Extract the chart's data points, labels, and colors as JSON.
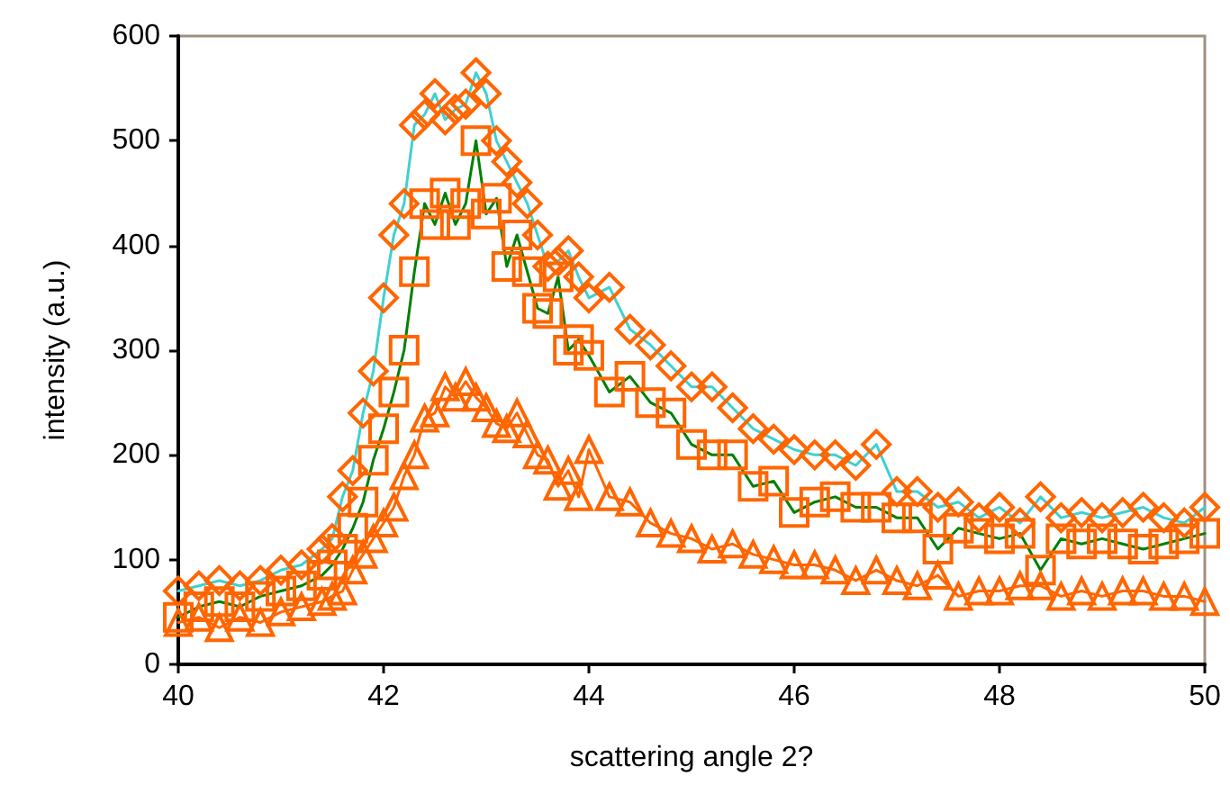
{
  "chart_data": {
    "type": "line",
    "xlabel": "scattering angle 2?",
    "ylabel": "intensity (a.u.)",
    "x": [
      40,
      40.2,
      40.4,
      40.6,
      40.8,
      41,
      41.2,
      41.4,
      41.5,
      41.6,
      41.7,
      41.8,
      41.9,
      42,
      42.1,
      42.2,
      42.3,
      42.4,
      42.5,
      42.6,
      42.7,
      42.8,
      42.9,
      43,
      43.1,
      43.2,
      43.3,
      43.4,
      43.5,
      43.6,
      43.7,
      43.8,
      43.9,
      44,
      44.2,
      44.4,
      44.6,
      44.8,
      45,
      45.2,
      45.4,
      45.6,
      45.8,
      46,
      46.2,
      46.4,
      46.6,
      46.8,
      47,
      47.2,
      47.4,
      47.6,
      47.8,
      48,
      48.2,
      48.4,
      48.6,
      48.8,
      49,
      49.2,
      49.4,
      49.6,
      49.8,
      50
    ],
    "xlim": [
      40,
      50
    ],
    "xticks": [
      40,
      42,
      44,
      46,
      48,
      50
    ],
    "ylim": [
      0,
      600
    ],
    "yticks": [
      0,
      100,
      200,
      300,
      400,
      500,
      600
    ],
    "grid": false,
    "line_style": "solid",
    "series": [
      {
        "color": "#40d0d0",
        "marker": "diamond",
        "colors": [
          "#ff6600",
          "#ff6600",
          "#ff6600",
          "#ff6600",
          "#ff6600",
          "#ff6600",
          "#ff6600",
          "#ff6600",
          "#ff6600",
          "#ff6600",
          "#ff6600",
          "#ff6600",
          "#ff6600",
          "#ff6600",
          "#ff6600",
          "#ff6600",
          "#ff6600",
          "#ff6600",
          "#ff6600",
          "#ff6600",
          "#ff6600",
          "#ff6600",
          "#ff6600",
          "#ff6600",
          "#ff6600",
          "#ff6600",
          "#ff6600",
          "#ff6600",
          "#ff6600",
          "#ff6600",
          "#ff6600",
          "#ff6600",
          "#ff6600",
          "#ff6600",
          "#ff6600",
          "#ff6600",
          "#ff6600",
          "#ff6600",
          "#ff6600",
          "#ff6600",
          "#ff6600",
          "#ff6600",
          "#ff6600",
          "#ff6600",
          "#ff6600",
          "#ff6600",
          "#ff6600",
          "#ff6600",
          "#ff6600",
          "#ff6600",
          "#ff6600",
          "#ff6600",
          "#ff6600",
          "#ff6600",
          "#ff6600",
          "#ff6600",
          "#ff6600",
          "#ff6600",
          "#ff6600",
          "#ff6600",
          "#ff6600",
          "#ff6600",
          "#ff6600",
          "#ff6600"
        ],
        "values": [
          70,
          75,
          80,
          75,
          80,
          90,
          95,
          110,
          120,
          160,
          185,
          240,
          280,
          350,
          410,
          440,
          515,
          525,
          545,
          520,
          530,
          535,
          565,
          545,
          500,
          480,
          460,
          440,
          410,
          380,
          385,
          395,
          370,
          350,
          360,
          320,
          305,
          285,
          265,
          265,
          245,
          225,
          215,
          205,
          200,
          200,
          190,
          210,
          165,
          165,
          150,
          155,
          140,
          150,
          135,
          160,
          140,
          145,
          140,
          145,
          150,
          140,
          135,
          150
        ]
      },
      {
        "color": "#008000",
        "marker": "square",
        "colors": [
          "#ff6600",
          "#ff6600",
          "#ff6600",
          "#ff6600",
          "#ff6600",
          "#ff6600",
          "#ff6600",
          "#ff6600",
          "#ff6600",
          "#ff6600",
          "#ff6600",
          "#ff6600",
          "#ff6600",
          "#ff6600",
          "#ff6600",
          "#ff6600",
          "#ff6600",
          "#ff6600",
          "#ff6600",
          "#ff6600",
          "#ff6600",
          "#ff6600",
          "#ff6600",
          "#ff6600",
          "#ff6600",
          "#ff6600",
          "#ff6600",
          "#ff6600",
          "#ff6600",
          "#ff6600",
          "#ff6600",
          "#ff6600",
          "#ff6600",
          "#ff6600",
          "#ff6600",
          "#ff6600",
          "#ff6600",
          "#ff6600",
          "#ff6600",
          "#ff6600",
          "#ff6600",
          "#ff6600",
          "#ff6600",
          "#ff6600",
          "#ff6600",
          "#ff6600",
          "#ff6600",
          "#ff6600",
          "#ff6600",
          "#ff6600",
          "#ff6600",
          "#ff6600",
          "#ff6600",
          "#ff6600",
          "#ff6600",
          "#ff6600",
          "#ff6600",
          "#ff6600",
          "#ff6600",
          "#ff6600",
          "#ff6600",
          "#ff6600",
          "#ff6600",
          "#ff6600"
        ],
        "values": [
          45,
          55,
          60,
          55,
          65,
          70,
          75,
          85,
          95,
          110,
          130,
          155,
          195,
          225,
          260,
          300,
          375,
          440,
          420,
          450,
          420,
          440,
          500,
          430,
          445,
          380,
          410,
          375,
          340,
          335,
          370,
          300,
          310,
          295,
          260,
          275,
          250,
          240,
          210,
          200,
          200,
          170,
          175,
          145,
          155,
          160,
          150,
          150,
          140,
          140,
          110,
          130,
          125,
          120,
          125,
          90,
          120,
          115,
          120,
          115,
          110,
          115,
          120,
          125
        ]
      },
      {
        "color": "#ff6600",
        "marker": "triangle",
        "colors": [
          "#ff6600",
          "#ff6600",
          "#ff6600",
          "#ff6600",
          "#ff6600",
          "#ff6600",
          "#ff6600",
          "#ff6600",
          "#ff6600",
          "#ff6600",
          "#ff6600",
          "#ff6600",
          "#ff6600",
          "#ff6600",
          "#ff6600",
          "#ff6600",
          "#ff6600",
          "#ff6600",
          "#ff6600",
          "#ff6600",
          "#ff6600",
          "#ff6600",
          "#ff6600",
          "#ff6600",
          "#ff6600",
          "#ff6600",
          "#ff6600",
          "#ff6600",
          "#ff6600",
          "#ff6600",
          "#ff6600",
          "#ff6600",
          "#ff6600",
          "#ff6600",
          "#ff6600",
          "#ff6600",
          "#ff6600",
          "#ff6600",
          "#ff6600",
          "#ff6600",
          "#ff6600",
          "#ff6600",
          "#ff6600",
          "#ff6600",
          "#ff6600",
          "#ff6600",
          "#ff6600",
          "#ff6600",
          "#ff6600",
          "#ff6600",
          "#ff6600",
          "#ff6600",
          "#ff6600",
          "#ff6600",
          "#ff6600",
          "#ff6600",
          "#ff6600",
          "#ff6600",
          "#ff6600",
          "#ff6600",
          "#ff6600",
          "#ff6600",
          "#ff6600",
          "#ff6600"
        ],
        "values": [
          40,
          45,
          35,
          45,
          40,
          50,
          55,
          60,
          65,
          70,
          90,
          105,
          120,
          135,
          150,
          180,
          200,
          235,
          240,
          265,
          255,
          270,
          255,
          245,
          230,
          225,
          240,
          220,
          200,
          195,
          170,
          185,
          160,
          205,
          160,
          155,
          135,
          125,
          120,
          110,
          115,
          105,
          100,
          95,
          95,
          90,
          80,
          90,
          80,
          75,
          85,
          65,
          70,
          70,
          75,
          75,
          65,
          70,
          65,
          70,
          70,
          65,
          65,
          60
        ]
      }
    ]
  }
}
